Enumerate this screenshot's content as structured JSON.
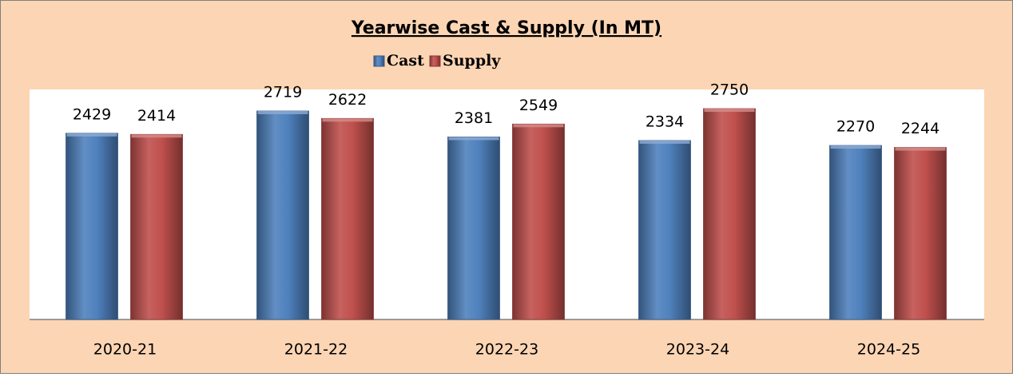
{
  "chart_data": {
    "type": "bar",
    "title": "Yearwise Cast & Supply (In MT)",
    "categories": [
      "2020-21",
      "2021-22",
      "2022-23",
      "2023-24",
      "2024-25"
    ],
    "series": [
      {
        "name": "Cast",
        "color": "#4f81bd",
        "values": [
          2429,
          2719,
          2381,
          2334,
          2270
        ]
      },
      {
        "name": "Supply",
        "color": "#c0504d",
        "values": [
          2414,
          2622,
          2549,
          2750,
          2244
        ]
      }
    ],
    "ylim": [
      0,
      3000
    ],
    "legend": "top"
  }
}
